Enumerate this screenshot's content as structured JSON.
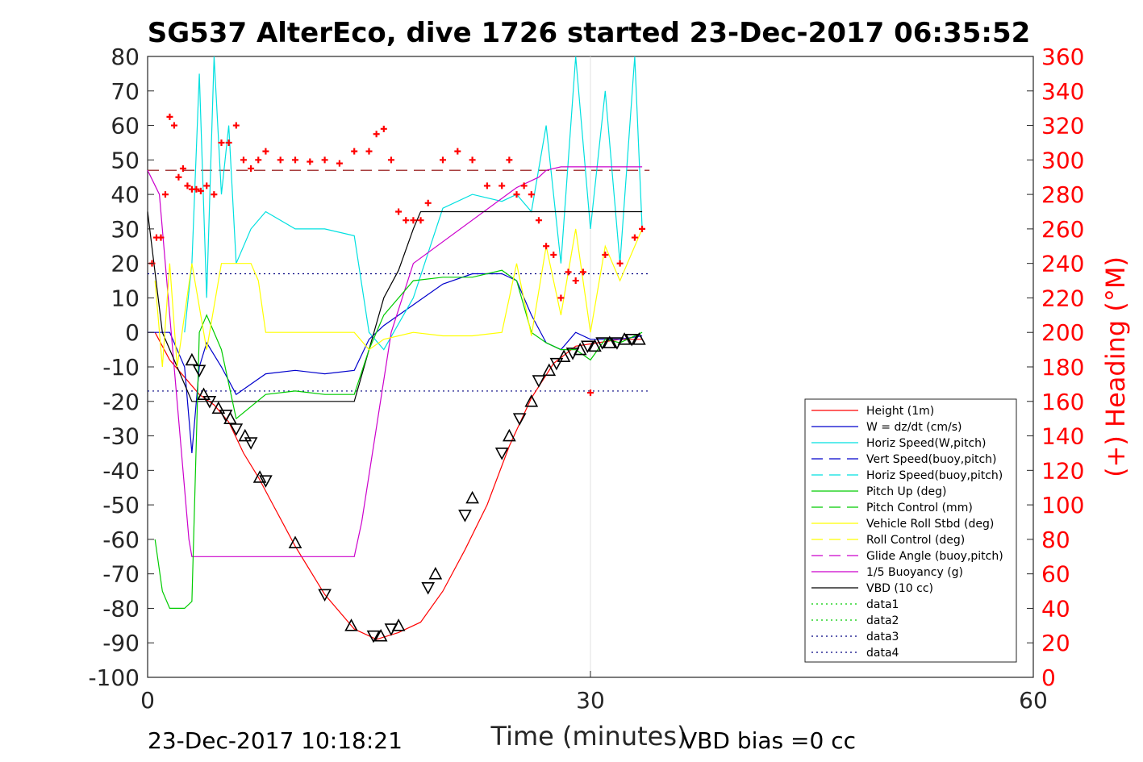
{
  "chart_data": {
    "type": "line",
    "title": "SG537 AlterEco, dive 1726 started 23-Dec-2017 06:35:52",
    "xlabel": "Time (minutes)",
    "ylabel": "",
    "ylabel_right": "(+) Heading (°M)",
    "xlim": [
      0,
      60
    ],
    "ylim": [
      -100,
      80
    ],
    "ylim_right": [
      0,
      360
    ],
    "xticks": [
      "0",
      "30",
      "60"
    ],
    "yticks": [
      "80",
      "70",
      "60",
      "50",
      "40",
      "30",
      "20",
      "10",
      "0",
      "-10",
      "-20",
      "-30",
      "-40",
      "-50",
      "-60",
      "-70",
      "-80",
      "-90",
      "-100"
    ],
    "yticks_right": [
      "360",
      "340",
      "320",
      "300",
      "280",
      "260",
      "240",
      "220",
      "200",
      "180",
      "160",
      "140",
      "120",
      "100",
      "80",
      "60",
      "40",
      "20",
      "0"
    ],
    "grid": "x=30 only",
    "legend_position": "bottom-right",
    "footer_left": "23-Dec-2017 10:18:21",
    "footer_right": "VBD bias =0 cc",
    "legend": [
      {
        "label": "Height (1m)",
        "color": "#ff0000",
        "style": "solid"
      },
      {
        "label": "W = dz/dt (cm/s)",
        "color": "#0000cc",
        "style": "solid"
      },
      {
        "label": "Horiz Speed(W,pitch)",
        "color": "#00e0e0",
        "style": "solid"
      },
      {
        "label": "Vert Speed(buoy,pitch)",
        "color": "#0000cc",
        "style": "dashed"
      },
      {
        "label": "Horiz Speed(buoy,pitch)",
        "color": "#00e0e0",
        "style": "dashed"
      },
      {
        "label": "Pitch Up (deg)",
        "color": "#00cc00",
        "style": "solid"
      },
      {
        "label": "Pitch Control (mm)",
        "color": "#00cc00",
        "style": "dashed"
      },
      {
        "label": "Vehicle Roll Stbd (deg)",
        "color": "#ffff00",
        "style": "solid"
      },
      {
        "label": "Roll Control (deg)",
        "color": "#ffff00",
        "style": "dashed"
      },
      {
        "label": "Glide Angle (buoy,pitch)",
        "color": "#cc00cc",
        "style": "dashed"
      },
      {
        "label": "1/5 Buoyancy (g)",
        "color": "#cc00cc",
        "style": "solid"
      },
      {
        "label": "VBD (10 cc)",
        "color": "#000000",
        "style": "solid"
      },
      {
        "label": "data1",
        "color": "#00cc00",
        "style": "dotted"
      },
      {
        "label": "data2",
        "color": "#00cc00",
        "style": "dotted"
      },
      {
        "label": "data3",
        "color": "#000080",
        "style": "dotted"
      },
      {
        "label": "data4",
        "color": "#000080",
        "style": "dotted"
      }
    ],
    "series": [
      {
        "name": "Height (1m)",
        "color": "#ff0000",
        "x": [
          0.5,
          1.5,
          2.5,
          3.5,
          4.5,
          5.5,
          6.5,
          7.5,
          8.5,
          10,
          12,
          14,
          15.5,
          17,
          18.5,
          20,
          21.5,
          23,
          24.5,
          26,
          27.5,
          29,
          30.5,
          32,
          33.5
        ],
        "y": [
          0,
          -8,
          -13,
          -18,
          -21,
          -26,
          -35,
          -42,
          -50,
          -62,
          -76,
          -86,
          -89,
          -87,
          -84,
          -75,
          -63,
          -50,
          -33,
          -19,
          -9,
          -4,
          -3,
          -2,
          -2
        ]
      },
      {
        "name": "W = dz/dt (cm/s)",
        "color": "#0000cc",
        "x": [
          0,
          1.5,
          2.5,
          3,
          3.5,
          4,
          5,
          6,
          7,
          8,
          10,
          12,
          14,
          15,
          16,
          18,
          20,
          22,
          24,
          25,
          26,
          27,
          28,
          29,
          30,
          32,
          33.5
        ],
        "y": [
          0,
          0,
          -10,
          -35,
          -10,
          -3,
          -10,
          -18,
          -15,
          -12,
          -11,
          -12,
          -11,
          -2,
          2,
          8,
          14,
          17,
          17,
          15,
          5,
          -3,
          -5,
          0,
          -2,
          -2,
          -1
        ]
      },
      {
        "name": "Horiz Speed(W,pitch)",
        "color": "#00e0e0",
        "x": [
          2.5,
          3,
          3.5,
          4,
          4.5,
          5,
          5.5,
          6,
          7,
          8,
          10,
          12,
          14,
          15,
          16,
          18,
          20,
          22,
          24,
          25,
          26,
          27,
          28,
          29,
          30,
          31,
          32,
          33,
          33.5
        ],
        "y": [
          0,
          20,
          75,
          10,
          80,
          40,
          60,
          20,
          30,
          35,
          30,
          30,
          28,
          0,
          -5,
          10,
          36,
          40,
          38,
          40,
          35,
          60,
          20,
          80,
          30,
          70,
          20,
          80,
          30
        ]
      },
      {
        "name": "1/5 Buoyancy (g)",
        "color": "#cc00cc",
        "x": [
          0,
          0.8,
          2.8,
          3,
          14,
          14.5,
          16.5,
          18,
          25,
          26.5,
          27,
          28,
          33.5
        ],
        "y": [
          47,
          40,
          -60,
          -65,
          -65,
          -55,
          0,
          20,
          42,
          45,
          47,
          48,
          48
        ]
      },
      {
        "name": "VBD (10 cc)",
        "color": "#000000",
        "x": [
          0,
          1,
          2,
          3,
          14,
          15,
          16,
          17,
          18,
          18.5,
          25,
          33.5
        ],
        "y": [
          35,
          0,
          -10,
          -20,
          -20,
          -5,
          10,
          18,
          30,
          35,
          35,
          35
        ]
      },
      {
        "name": "Pitch Up (deg)",
        "color": "#00cc00",
        "x": [
          0.5,
          1,
          1.5,
          2,
          2.5,
          3,
          3.5,
          4,
          5,
          6,
          8,
          10,
          12,
          14,
          15,
          16,
          18,
          20,
          22,
          24,
          25,
          26,
          27,
          28,
          29,
          30,
          31,
          32,
          33.5
        ],
        "y": [
          -60,
          -75,
          -80,
          -80,
          -80,
          -78,
          0,
          5,
          -5,
          -25,
          -18,
          -17,
          -18,
          -18,
          -5,
          5,
          15,
          16,
          16,
          18,
          15,
          0,
          -3,
          -5,
          -5,
          -8,
          -2,
          -3,
          0
        ]
      },
      {
        "name": "Vehicle Roll Stbd (deg)",
        "color": "#ffff00",
        "x": [
          0.5,
          1,
          1.5,
          2,
          3,
          4,
          5,
          6,
          7,
          7.5,
          8,
          10,
          12,
          14,
          15,
          16,
          18,
          20,
          22,
          24,
          25,
          26,
          27,
          28,
          29,
          30,
          31,
          32,
          33.5
        ],
        "y": [
          15,
          -10,
          20,
          -10,
          20,
          -5,
          20,
          20,
          20,
          15,
          0,
          0,
          0,
          0,
          -5,
          -2,
          0,
          -1,
          -1,
          0,
          20,
          -1,
          25,
          5,
          30,
          0,
          25,
          15,
          30
        ]
      }
    ],
    "heading_series": {
      "name": "(+) Heading (°M)",
      "marker": "+",
      "color": "#ff0000",
      "x": [
        0.3,
        0.6,
        0.9,
        1.2,
        1.5,
        1.8,
        2.1,
        2.4,
        2.7,
        3,
        3.3,
        3.6,
        4,
        4.5,
        5,
        5.5,
        6,
        6.5,
        7,
        7.5,
        8,
        9,
        10,
        11,
        12,
        13,
        14,
        15,
        15.5,
        16,
        16.5,
        17,
        17.5,
        18,
        18.5,
        19,
        20,
        21,
        22,
        23,
        24,
        24.5,
        25,
        25.5,
        26,
        26.5,
        27,
        27.5,
        28,
        28.5,
        29,
        29.5,
        30,
        31,
        32,
        33,
        33.5
      ],
      "y": [
        240,
        255,
        255,
        280,
        325,
        320,
        290,
        295,
        285,
        283,
        283,
        282,
        285,
        280,
        310,
        310,
        320,
        300,
        295,
        300,
        305,
        300,
        300,
        299,
        300,
        298,
        305,
        305,
        315,
        318,
        300,
        270,
        265,
        265,
        265,
        275,
        300,
        305,
        300,
        285,
        285,
        300,
        280,
        285,
        280,
        265,
        250,
        245,
        220,
        235,
        230,
        235,
        165,
        245,
        240,
        255,
        260
      ]
    },
    "depth_markers": {
      "marker": "triangle",
      "color": "#000000",
      "x": [
        3,
        3.5,
        3.8,
        4.2,
        4.8,
        5.3,
        5.6,
        6,
        6.6,
        7,
        7.6,
        8,
        10,
        12,
        13.8,
        15.3,
        15.8,
        16.5,
        17,
        19,
        19.5,
        21.5,
        22,
        24,
        24.5,
        25.2,
        26,
        26.5,
        27.2,
        27.7,
        28.2,
        28.8,
        29.3,
        29.8,
        30.3,
        30.8,
        31.3,
        31.8,
        32.3,
        32.8,
        33.3
      ],
      "y": [
        -8,
        -11,
        -18,
        -20,
        -22,
        -24,
        -25,
        -28,
        -30,
        -32,
        -42,
        -43,
        -61,
        -76,
        -85,
        -88,
        -88,
        -86,
        -85,
        -74,
        -70,
        -53,
        -48,
        -35,
        -30,
        -25,
        -20,
        -14,
        -11,
        -9,
        -7,
        -6,
        -5,
        -4,
        -4,
        -3,
        -3,
        -3,
        -2,
        -2,
        -2
      ]
    },
    "reference_lines": [
      {
        "name": "data3",
        "y": 17,
        "color": "#000080",
        "style": "dotted"
      },
      {
        "name": "data4",
        "y": -17,
        "color": "#000080",
        "style": "dotted"
      },
      {
        "name": "Pitch Control (mm) level",
        "y": 47,
        "color": "#8b0000",
        "style": "dashed"
      }
    ]
  }
}
